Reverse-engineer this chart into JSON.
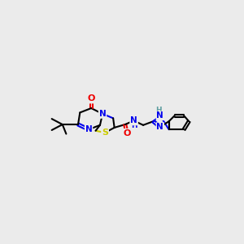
{
  "background_color": "#ebebeb",
  "colors": {
    "N": "#0000ee",
    "O": "#ee0000",
    "S": "#cccc00",
    "H": "#5f9ea0",
    "bond": "#000000"
  },
  "figsize": [
    3.0,
    3.0
  ],
  "dpi": 100
}
